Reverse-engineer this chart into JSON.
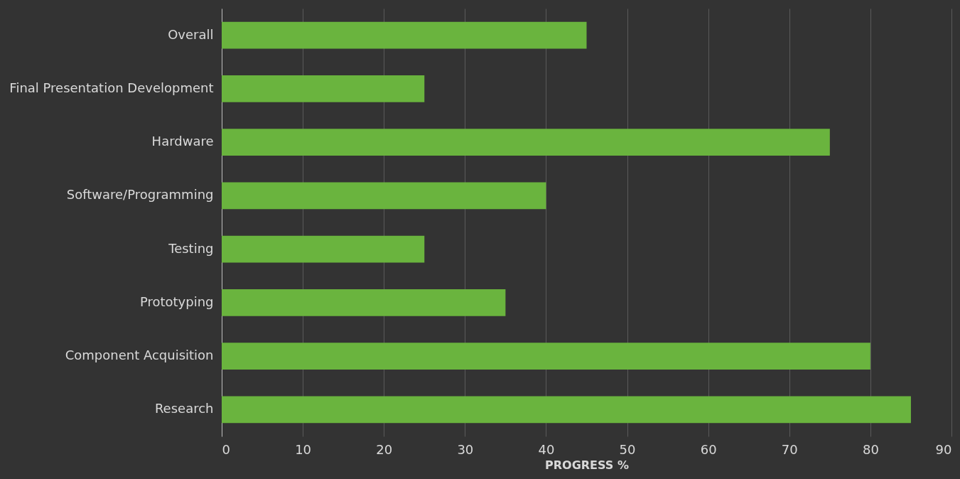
{
  "chart_data": {
    "type": "bar",
    "orientation": "horizontal",
    "xlabel": "PROGRESS %",
    "categories": [
      "Overall",
      "Final Presentation Development",
      "Hardware",
      "Software/Programming",
      "Testing",
      "Prototyping",
      "Component Acquisition",
      "Research"
    ],
    "values": [
      45,
      25,
      75,
      40,
      25,
      35,
      80,
      85
    ],
    "color": "#6ab43e",
    "xlim": [
      0,
      90
    ],
    "xticks": [
      0,
      10,
      20,
      30,
      40,
      50,
      60,
      70,
      80,
      90
    ],
    "grid": "x"
  }
}
